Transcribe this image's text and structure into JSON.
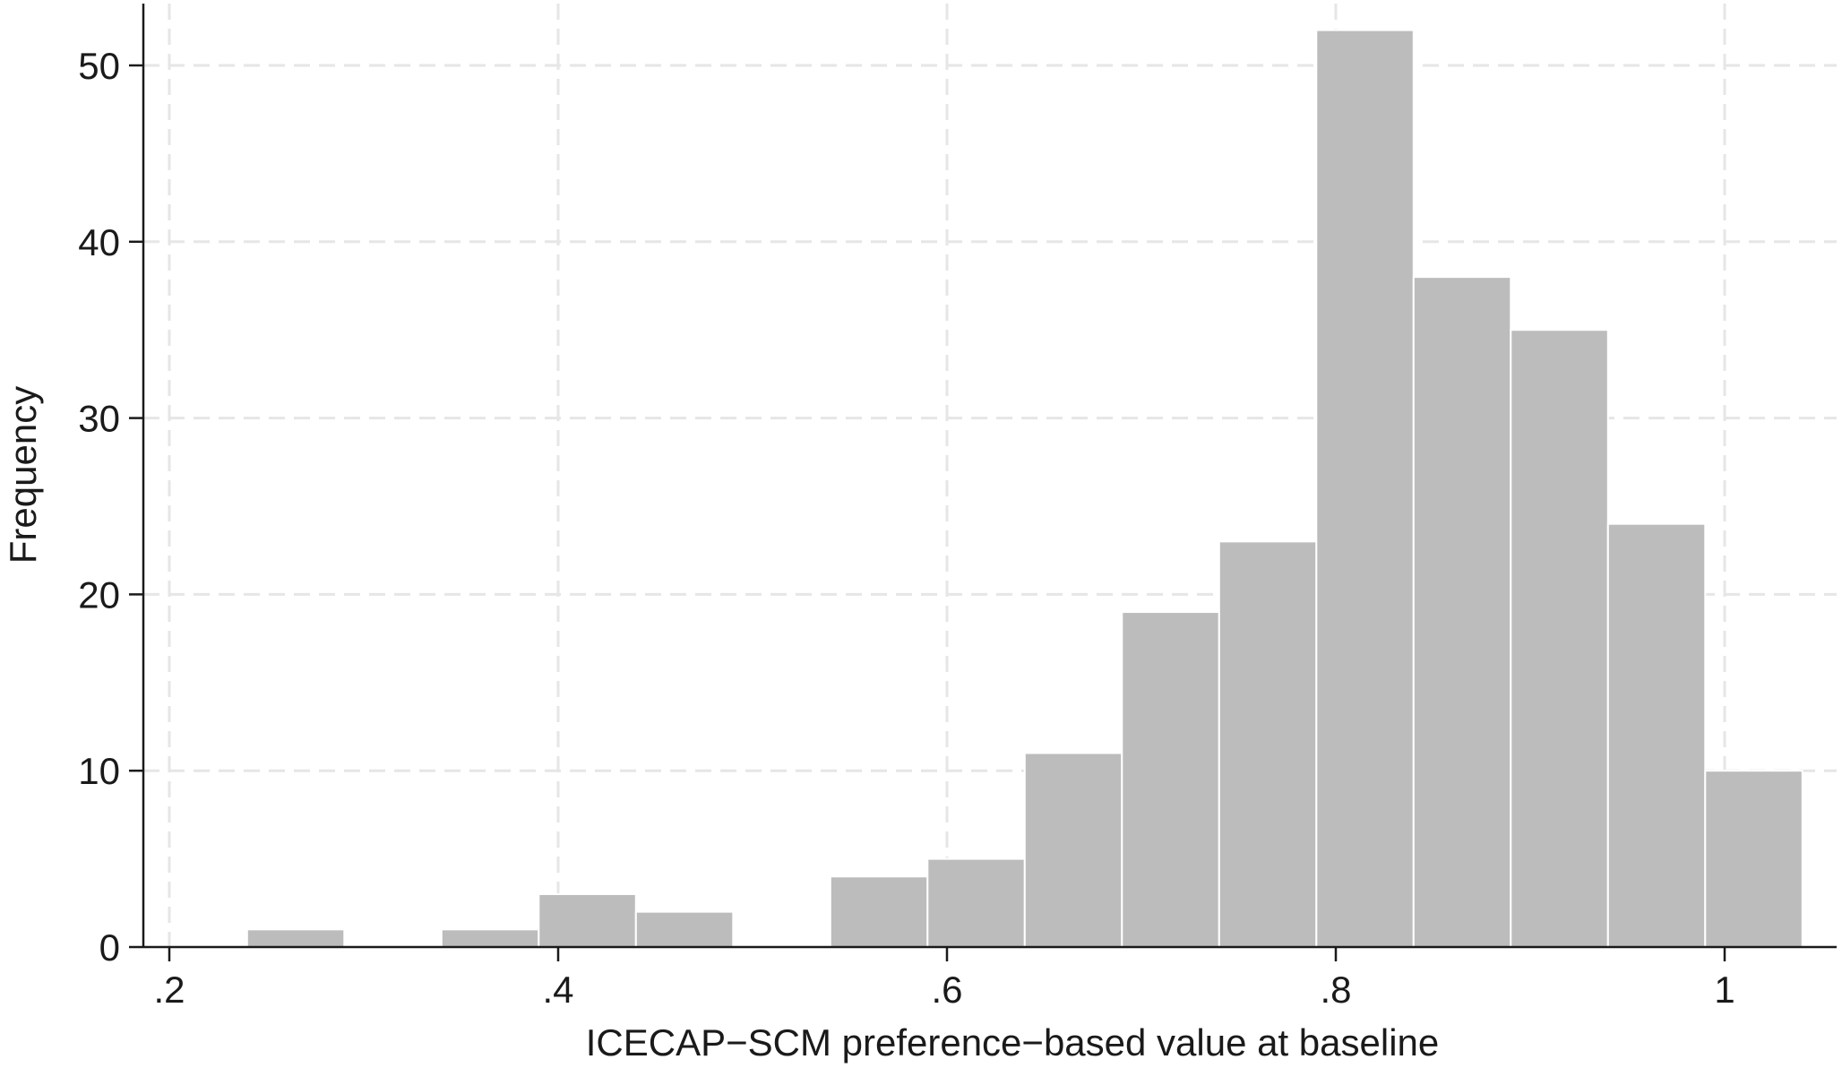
{
  "chart_data": {
    "type": "bar",
    "subtype": "histogram",
    "xlabel": "ICECAP−SCM preference−based value at baseline",
    "ylabel": "Frequency",
    "xlim": [
      0.2,
      1.04
    ],
    "ylim": [
      0,
      52
    ],
    "x_ticks": [
      0.2,
      0.4,
      0.6,
      0.8,
      1.0
    ],
    "x_tick_labels": [
      ".2",
      ".4",
      ".6",
      ".8",
      "1"
    ],
    "y_ticks": [
      0,
      10,
      20,
      30,
      40,
      50
    ],
    "y_tick_labels": [
      "0",
      "10",
      "20",
      "30",
      "40",
      "50"
    ],
    "grid": true,
    "bin_width": 0.05,
    "bins": [
      {
        "start": 0.24,
        "end": 0.29,
        "value": 1
      },
      {
        "start": 0.34,
        "end": 0.39,
        "value": 1
      },
      {
        "start": 0.39,
        "end": 0.44,
        "value": 3
      },
      {
        "start": 0.44,
        "end": 0.49,
        "value": 2
      },
      {
        "start": 0.54,
        "end": 0.59,
        "value": 4
      },
      {
        "start": 0.59,
        "end": 0.64,
        "value": 5
      },
      {
        "start": 0.64,
        "end": 0.69,
        "value": 11
      },
      {
        "start": 0.69,
        "end": 0.74,
        "value": 19
      },
      {
        "start": 0.74,
        "end": 0.79,
        "value": 23
      },
      {
        "start": 0.79,
        "end": 0.84,
        "value": 52
      },
      {
        "start": 0.84,
        "end": 0.89,
        "value": 38
      },
      {
        "start": 0.89,
        "end": 0.94,
        "value": 35
      },
      {
        "start": 0.94,
        "end": 0.99,
        "value": 24
      },
      {
        "start": 0.99,
        "end": 1.04,
        "value": 10
      }
    ],
    "colors": {
      "bar_fill": "#bcbcbc",
      "bar_stroke": "#ffffff",
      "grid": "#e6e6e6",
      "axis": "#1a1a1a"
    }
  }
}
